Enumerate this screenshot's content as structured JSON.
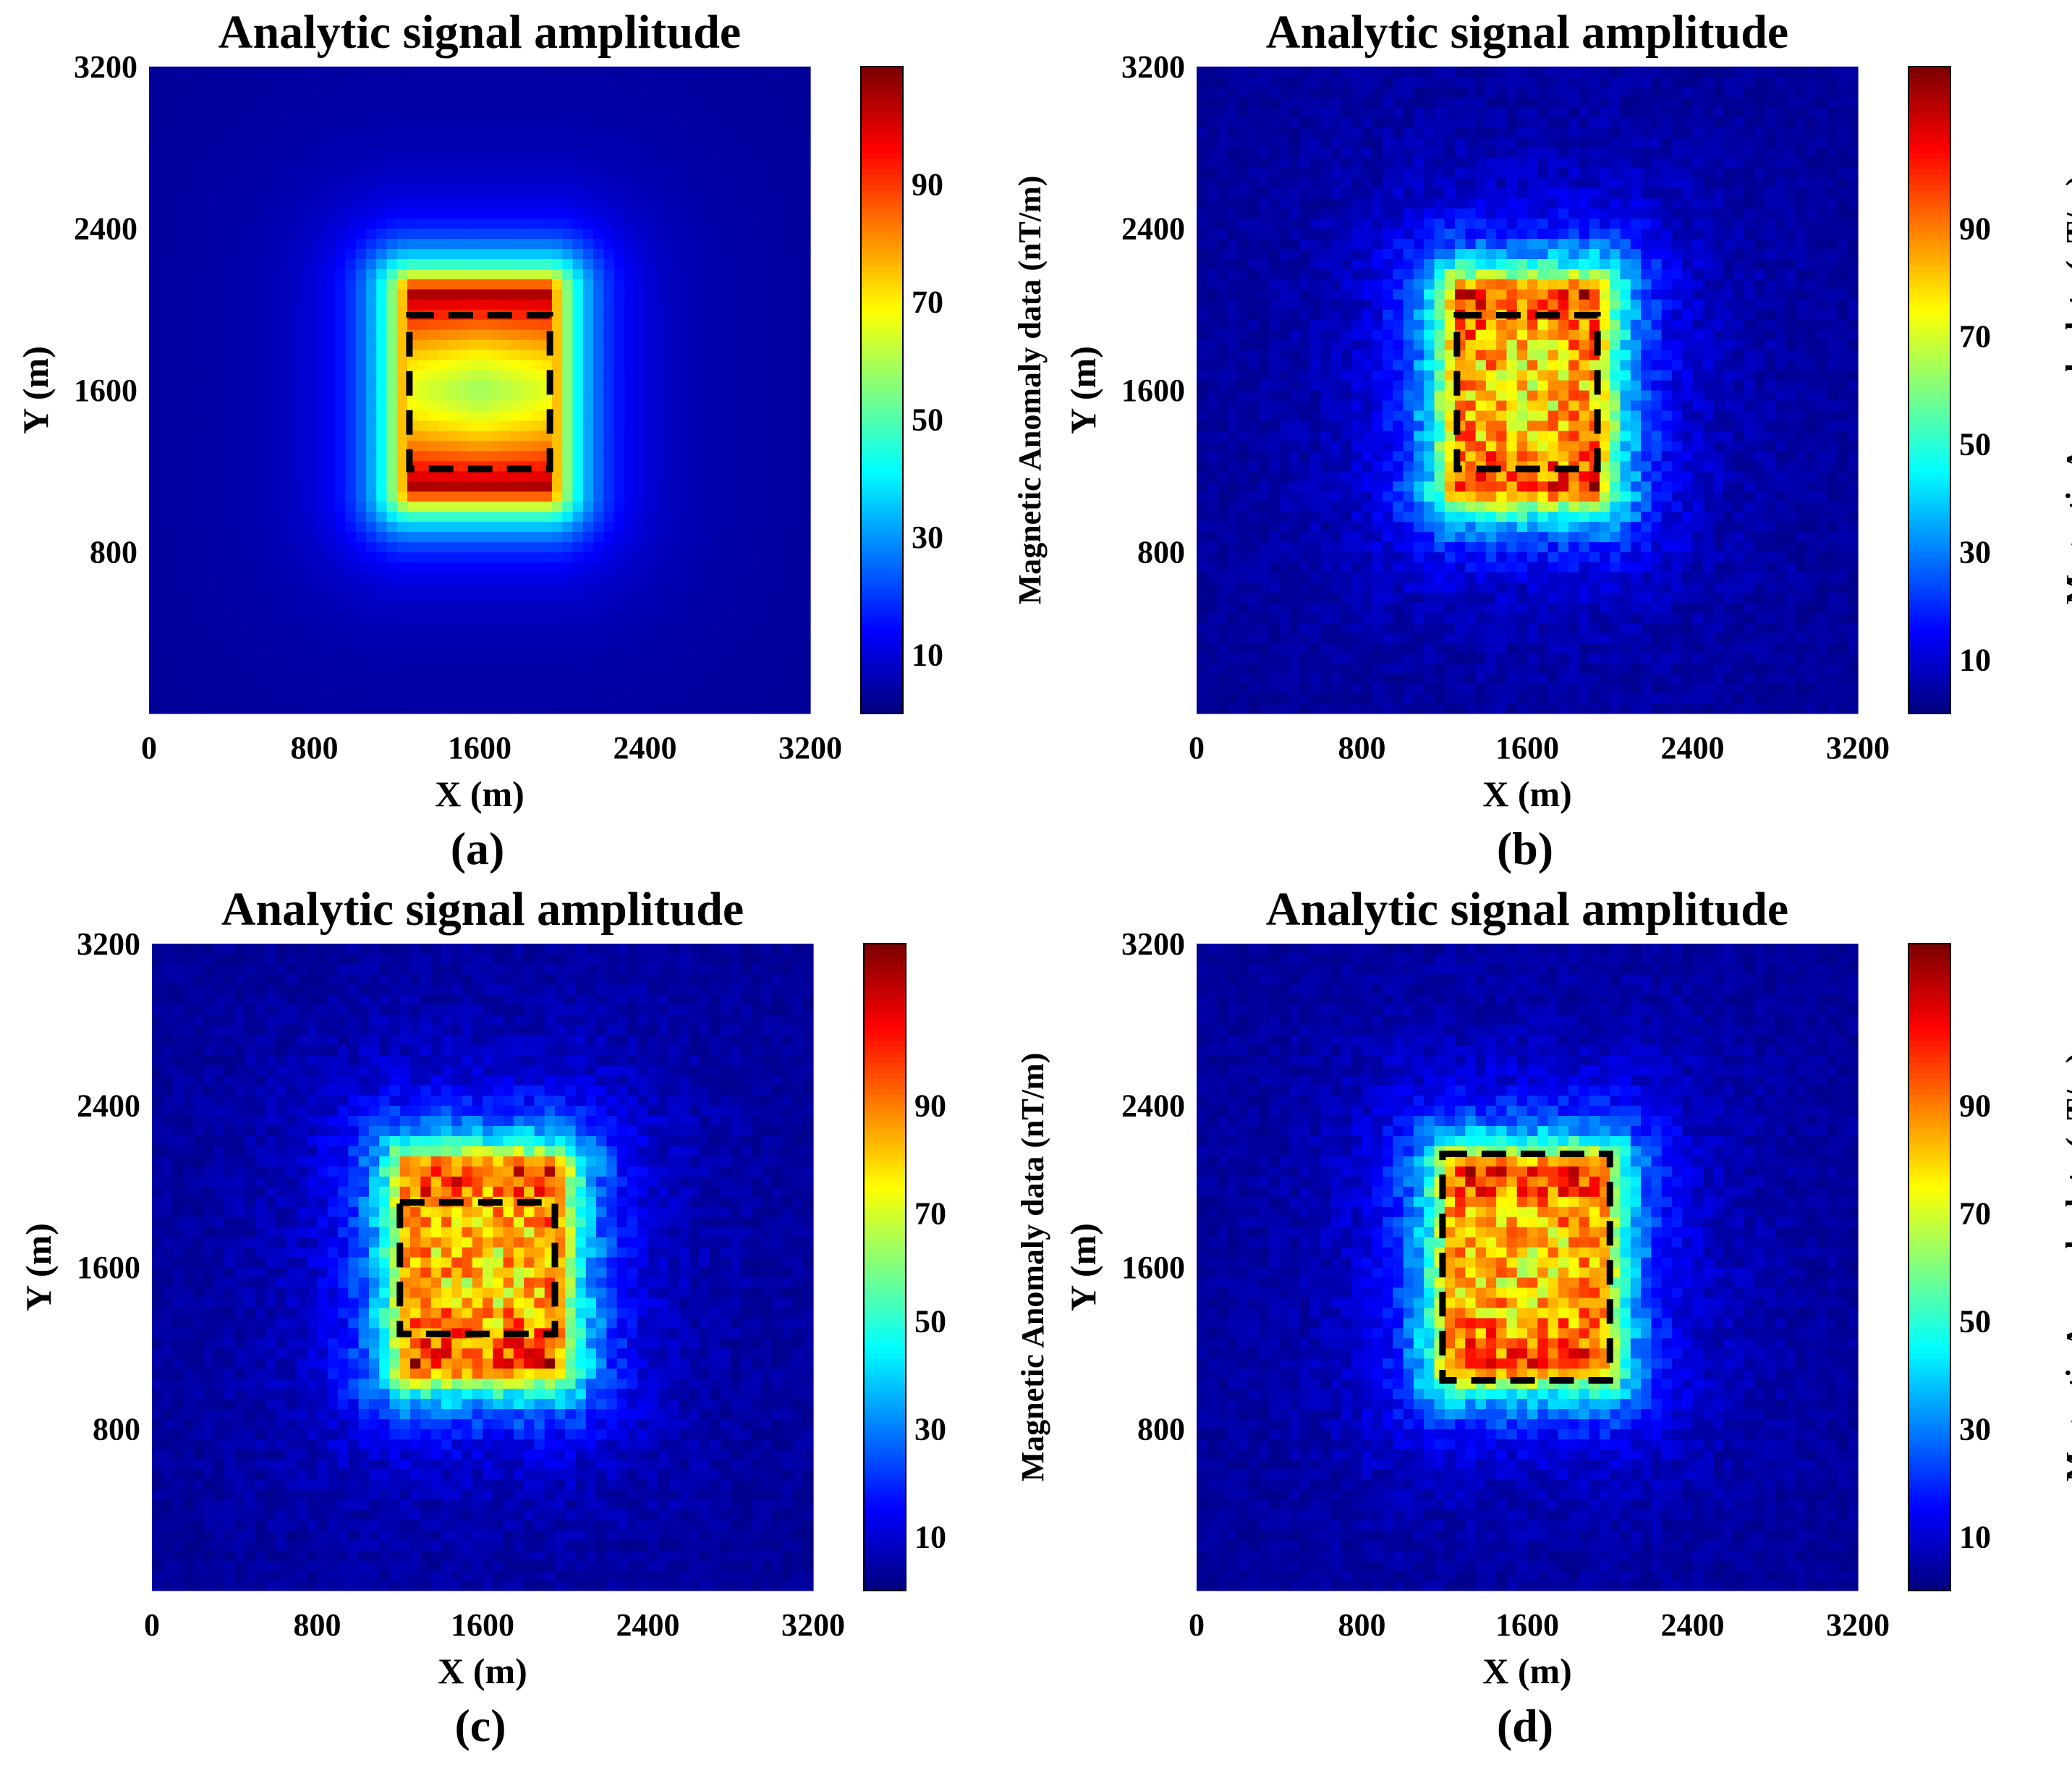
{
  "chart_data": [
    {
      "id": "a",
      "type": "heatmap",
      "title": "Analytic signal amplitude",
      "xlabel": "X (m)",
      "ylabel": "Y (m)",
      "xlim": [
        0,
        3200
      ],
      "ylim": [
        0,
        3200
      ],
      "xticks": [
        "0",
        "800",
        "1600",
        "2400",
        "3200"
      ],
      "yticks": [
        "800",
        "1600",
        "2400",
        "3200"
      ],
      "colorbar": {
        "label": "Magnetic Anomaly data (nT/m)",
        "range": [
          0,
          110
        ],
        "ticks": [
          "10",
          "30",
          "50",
          "70",
          "90"
        ]
      },
      "caption": "(a)",
      "noise": 0,
      "field": {
        "center": [
          1600,
          1600
        ],
        "half_width": [
          330,
          500
        ],
        "pattern": "clean"
      },
      "outline": {
        "x": [
          1260,
          1940
        ],
        "y": [
          1210,
          1970
        ]
      }
    },
    {
      "id": "b",
      "type": "heatmap",
      "title": "Analytic signal amplitude",
      "xlabel": "X (m)",
      "ylabel": "Y (m)",
      "xlim": [
        0,
        3200
      ],
      "ylim": [
        0,
        3200
      ],
      "xticks": [
        "0",
        "800",
        "1600",
        "2400",
        "3200"
      ],
      "yticks": [
        "800",
        "1600",
        "2400",
        "3200"
      ],
      "colorbar": {
        "label": "Magnetic Anomaly data (nT/m)",
        "range": [
          0,
          120
        ],
        "ticks": [
          "10",
          "30",
          "50",
          "70",
          "90"
        ]
      },
      "caption": "(b)",
      "noise": 1,
      "field": {
        "center": [
          1600,
          1600
        ],
        "half_width": [
          330,
          500
        ],
        "pattern": "noisy"
      },
      "outline": {
        "x": [
          1260,
          1940
        ],
        "y": [
          1210,
          1970
        ]
      }
    },
    {
      "id": "c",
      "type": "heatmap",
      "title": "Analytic signal amplitude",
      "xlabel": "X (m)",
      "ylabel": "Y (m)",
      "xlim": [
        0,
        3200
      ],
      "ylim": [
        0,
        3200
      ],
      "xticks": [
        "0",
        "800",
        "1600",
        "2400",
        "3200"
      ],
      "yticks": [
        "800",
        "1600",
        "2400",
        "3200"
      ],
      "colorbar": {
        "label": "Magnetic Anomaly data (nT/m)",
        "range": [
          0,
          120
        ],
        "ticks": [
          "10",
          "30",
          "50",
          "70",
          "90"
        ]
      },
      "caption": "(c)",
      "noise": 2,
      "field": {
        "center": [
          1600,
          1600
        ],
        "half_width": [
          350,
          500
        ],
        "pattern": "noisy"
      },
      "outline": {
        "x": [
          1200,
          1950
        ],
        "y": [
          1270,
          1920
        ]
      }
    },
    {
      "id": "d",
      "type": "heatmap",
      "title": "Analytic signal amplitude",
      "xlabel": "X (m)",
      "ylabel": "Y (m)",
      "xlim": [
        0,
        3200
      ],
      "ylim": [
        0,
        3200
      ],
      "xticks": [
        "0",
        "800",
        "1600",
        "2400",
        "3200"
      ],
      "yticks": [
        "800",
        "1600",
        "2400",
        "3200"
      ],
      "colorbar": {
        "label": "Magnetic Anomaly data (nT/m)",
        "range": [
          0,
          120
        ],
        "ticks": [
          "10",
          "30",
          "50",
          "70",
          "90"
        ]
      },
      "caption": "(d)",
      "noise": 3,
      "field": {
        "center": [
          1600,
          1600
        ],
        "half_width": [
          350,
          500
        ],
        "pattern": "noisy"
      },
      "outline": {
        "x": [
          1190,
          2000
        ],
        "y": [
          1040,
          2160
        ]
      }
    }
  ],
  "colors": {
    "frame": "#000000",
    "outline": "#000000",
    "background": "#ffffff"
  }
}
